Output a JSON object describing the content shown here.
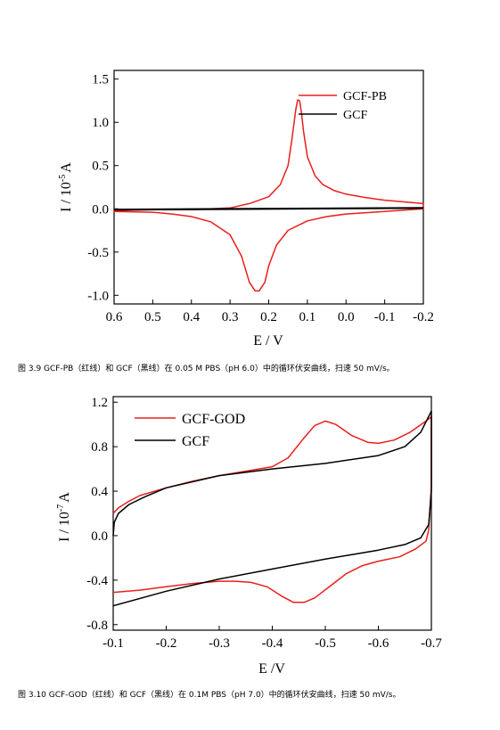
{
  "figure1": {
    "caption": "图 3.9 GCF-PB（红线）和 GCF（黑线）在 0.05 M PBS（pH 6.0）中的循环伏安曲线，扫速 50 mV/s。",
    "chart_data": {
      "type": "line",
      "xlabel": "E / V",
      "ylabel_main": "I / 10",
      "ylabel_exp": "-5",
      "ylabel_unit": "A",
      "xlim": [
        0.6,
        -0.2
      ],
      "ylim": [
        -1.1,
        1.6
      ],
      "x_ticks": [
        "0.6",
        "0.5",
        "0.4",
        "0.3",
        "0.2",
        "0.1",
        "0.0",
        "-0.1",
        "-0.2"
      ],
      "y_ticks": [
        "-1.0",
        "-0.5",
        "0.0",
        "0.5",
        "1.0",
        "1.5"
      ],
      "legend_position": "top-right",
      "series": [
        {
          "name": "GCF-PB",
          "color": "#e8201c",
          "closed": true,
          "points": [
            [
              -0.2,
              0.06
            ],
            [
              -0.15,
              0.08
            ],
            [
              -0.1,
              0.1
            ],
            [
              -0.05,
              0.13
            ],
            [
              0.0,
              0.17
            ],
            [
              0.03,
              0.21
            ],
            [
              0.06,
              0.28
            ],
            [
              0.08,
              0.38
            ],
            [
              0.1,
              0.6
            ],
            [
              0.11,
              0.9
            ],
            [
              0.115,
              1.1
            ],
            [
              0.12,
              1.25
            ],
            [
              0.125,
              1.26
            ],
            [
              0.13,
              1.15
            ],
            [
              0.14,
              0.8
            ],
            [
              0.15,
              0.5
            ],
            [
              0.17,
              0.28
            ],
            [
              0.2,
              0.14
            ],
            [
              0.25,
              0.06
            ],
            [
              0.3,
              0.01
            ],
            [
              0.4,
              -0.01
            ],
            [
              0.5,
              -0.01
            ],
            [
              0.6,
              -0.02
            ],
            [
              0.6,
              -0.03
            ],
            [
              0.5,
              -0.04
            ],
            [
              0.45,
              -0.06
            ],
            [
              0.4,
              -0.09
            ],
            [
              0.35,
              -0.15
            ],
            [
              0.3,
              -0.3
            ],
            [
              0.27,
              -0.55
            ],
            [
              0.25,
              -0.85
            ],
            [
              0.235,
              -0.95
            ],
            [
              0.225,
              -0.95
            ],
            [
              0.21,
              -0.85
            ],
            [
              0.2,
              -0.66
            ],
            [
              0.18,
              -0.42
            ],
            [
              0.15,
              -0.25
            ],
            [
              0.1,
              -0.14
            ],
            [
              0.05,
              -0.09
            ],
            [
              0.0,
              -0.06
            ],
            [
              -0.1,
              -0.03
            ],
            [
              -0.2,
              0.0
            ]
          ]
        },
        {
          "name": "GCF",
          "color": "#000000",
          "closed": false,
          "points": [
            [
              0.6,
              -0.01
            ],
            [
              -0.2,
              0.01
            ]
          ]
        }
      ]
    }
  },
  "figure2": {
    "caption": "图 3.10 GCF-GOD（红线）和 GCF（黑线）在 0.1M PBS（pH 7.0）中的循环伏安曲线，扫速 50 mV/s。",
    "chart_data": {
      "type": "line",
      "xlabel": "E /V",
      "ylabel_main": "I / 10",
      "ylabel_exp": "-7",
      "ylabel_unit": "A",
      "xlim": [
        -0.1,
        -0.7
      ],
      "ylim": [
        -0.85,
        1.25
      ],
      "x_ticks": [
        "-0.1",
        "-0.2",
        "-0.3",
        "-0.4",
        "-0.5",
        "-0.6",
        "-0.7"
      ],
      "y_ticks": [
        "-0.8",
        "-0.4",
        "0.0",
        "0.4",
        "0.8",
        "1.2"
      ],
      "legend_position": "top-left",
      "series": [
        {
          "name": "GCF-GOD",
          "color": "#e8201c",
          "closed": false,
          "points": [
            [
              -0.1,
              0.2
            ],
            [
              -0.11,
              0.25
            ],
            [
              -0.13,
              0.31
            ],
            [
              -0.15,
              0.36
            ],
            [
              -0.2,
              0.43
            ],
            [
              -0.25,
              0.49
            ],
            [
              -0.3,
              0.54
            ],
            [
              -0.35,
              0.58
            ],
            [
              -0.4,
              0.62
            ],
            [
              -0.43,
              0.7
            ],
            [
              -0.46,
              0.88
            ],
            [
              -0.48,
              0.99
            ],
            [
              -0.5,
              1.03
            ],
            [
              -0.52,
              1.0
            ],
            [
              -0.55,
              0.9
            ],
            [
              -0.58,
              0.84
            ],
            [
              -0.6,
              0.83
            ],
            [
              -0.63,
              0.86
            ],
            [
              -0.66,
              0.93
            ],
            [
              -0.69,
              1.03
            ],
            [
              -0.7,
              1.07
            ],
            [
              -0.7,
              0.45
            ],
            [
              -0.695,
              0.05
            ],
            [
              -0.69,
              -0.05
            ],
            [
              -0.67,
              -0.12
            ],
            [
              -0.64,
              -0.19
            ],
            [
              -0.6,
              -0.23
            ],
            [
              -0.57,
              -0.27
            ],
            [
              -0.54,
              -0.34
            ],
            [
              -0.51,
              -0.45
            ],
            [
              -0.48,
              -0.56
            ],
            [
              -0.46,
              -0.6
            ],
            [
              -0.44,
              -0.6
            ],
            [
              -0.42,
              -0.55
            ],
            [
              -0.39,
              -0.46
            ],
            [
              -0.36,
              -0.42
            ],
            [
              -0.33,
              -0.41
            ],
            [
              -0.3,
              -0.41
            ],
            [
              -0.25,
              -0.43
            ],
            [
              -0.2,
              -0.46
            ],
            [
              -0.15,
              -0.49
            ],
            [
              -0.1,
              -0.51
            ]
          ]
        },
        {
          "name": "GCF",
          "color": "#000000",
          "closed": false,
          "points": [
            [
              -0.1,
              0.0
            ],
            [
              -0.102,
              0.12
            ],
            [
              -0.11,
              0.2
            ],
            [
              -0.13,
              0.28
            ],
            [
              -0.16,
              0.35
            ],
            [
              -0.2,
              0.43
            ],
            [
              -0.3,
              0.54
            ],
            [
              -0.4,
              0.6
            ],
            [
              -0.5,
              0.65
            ],
            [
              -0.6,
              0.72
            ],
            [
              -0.65,
              0.8
            ],
            [
              -0.68,
              0.93
            ],
            [
              -0.7,
              1.12
            ],
            [
              -0.7,
              0.4
            ],
            [
              -0.695,
              0.1
            ],
            [
              -0.68,
              -0.02
            ],
            [
              -0.65,
              -0.08
            ],
            [
              -0.6,
              -0.13
            ],
            [
              -0.55,
              -0.17
            ],
            [
              -0.5,
              -0.21
            ],
            [
              -0.4,
              -0.3
            ],
            [
              -0.3,
              -0.39
            ],
            [
              -0.2,
              -0.5
            ],
            [
              -0.1,
              -0.63
            ]
          ]
        }
      ]
    }
  }
}
